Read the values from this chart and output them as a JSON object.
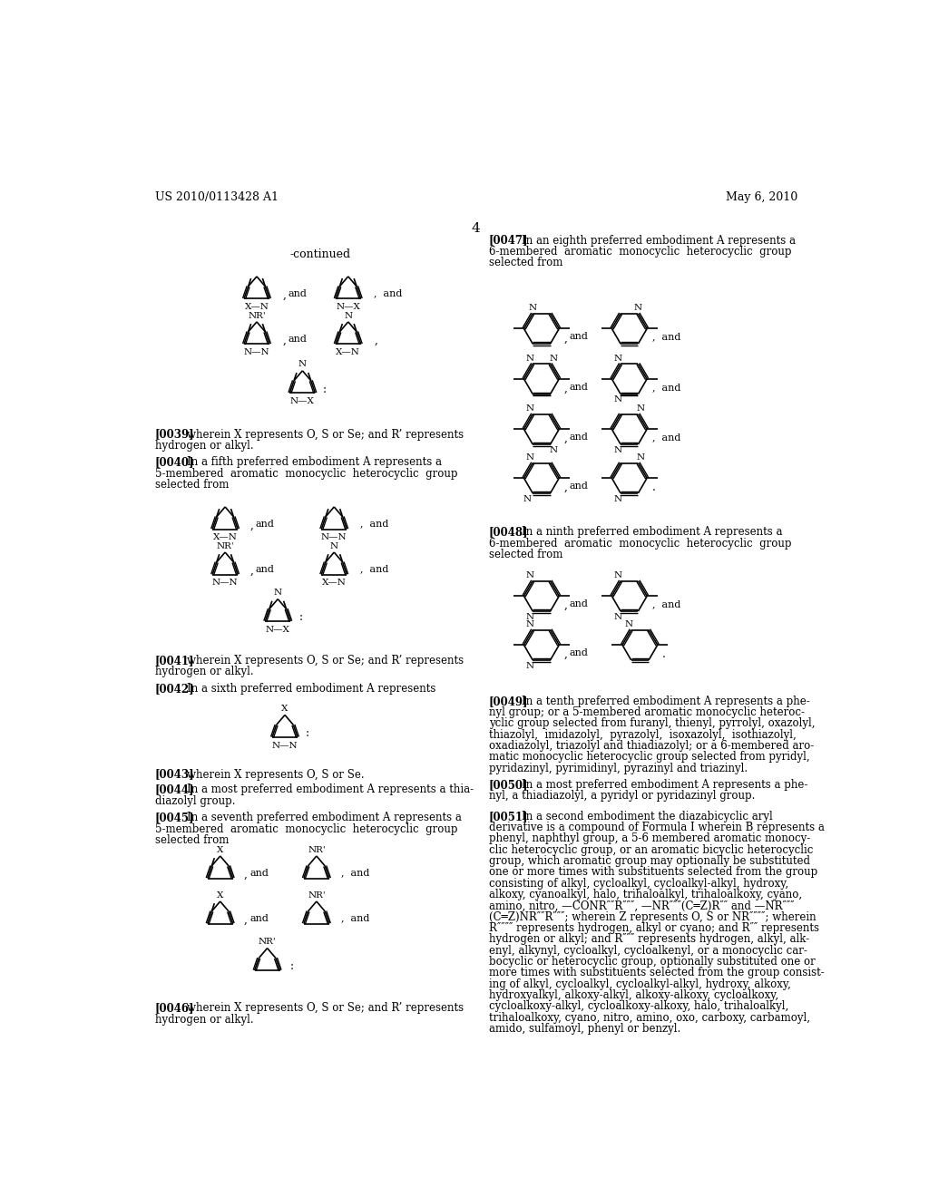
{
  "bg_color": "#ffffff",
  "header_left": "US 2010/0113428 A1",
  "header_right": "May 6, 2010",
  "page_number": "4"
}
